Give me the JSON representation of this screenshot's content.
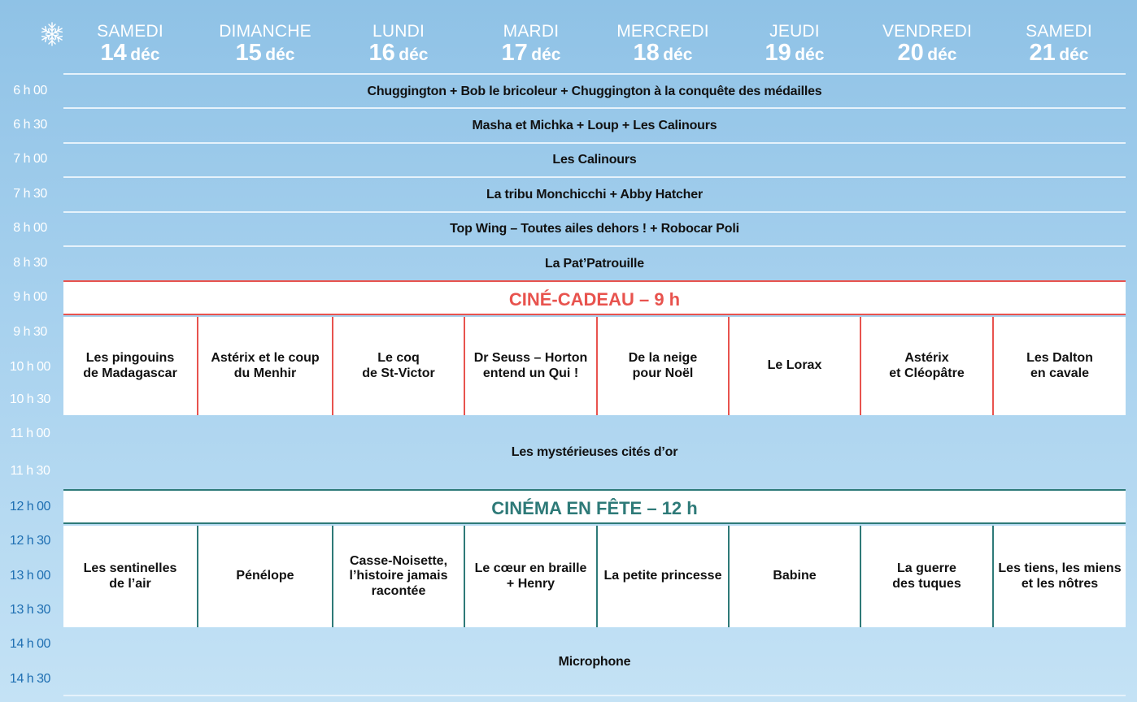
{
  "header": {
    "days": [
      {
        "name": "SAMEDI",
        "num": "14",
        "month": "déc"
      },
      {
        "name": "DIMANCHE",
        "num": "15",
        "month": "déc"
      },
      {
        "name": "LUNDI",
        "num": "16",
        "month": "déc"
      },
      {
        "name": "MARDI",
        "num": "17",
        "month": "déc"
      },
      {
        "name": "MERCREDI",
        "num": "18",
        "month": "déc"
      },
      {
        "name": "JEUDI",
        "num": "19",
        "month": "déc"
      },
      {
        "name": "VENDREDI",
        "num": "20",
        "month": "déc"
      },
      {
        "name": "SAMEDI",
        "num": "21",
        "month": "déc"
      }
    ]
  },
  "times": [
    "6 h 00",
    "6 h 30",
    "7 h 00",
    "7 h 30",
    "8 h 00",
    "8 h 30",
    "9 h 00",
    "9 h 30",
    "10 h 00",
    "10 h 30",
    "11 h 00",
    "11 h 30",
    "12 h 00",
    "12 h 30",
    "13 h 00",
    "13 h 30",
    "14 h 00",
    "14 h 30"
  ],
  "daily_programs": [
    "Chuggington + Bob le bricoleur + Chuggington à la conquête des médailles",
    "Masha et Michka + Loup + Les Calinours",
    "Les Calinours",
    "La tribu Monchicchi + Abby Hatcher",
    "Top Wing – Toutes ailes dehors ! + Robocar Poli",
    "La Pat’Patrouille"
  ],
  "cine_cadeau": {
    "title": "CINÉ-CADEAU – 9 h",
    "color": "#e8534e",
    "films": [
      [
        "Les pingouins",
        "de Madagascar"
      ],
      [
        "Astérix et le coup",
        "du Menhir"
      ],
      [
        "Le coq",
        "de St-Victor"
      ],
      [
        "Dr Seuss – Horton",
        "entend un Qui !"
      ],
      [
        "De la neige",
        "pour Noël"
      ],
      [
        "Le Lorax"
      ],
      [
        "Astérix",
        "et Cléopâtre"
      ],
      [
        "Les Dalton",
        "en cavale"
      ]
    ]
  },
  "midday_program": "Les mystérieuses cités d’or",
  "cinema_en_fete": {
    "title": "CINÉMA EN FÊTE – 12 h",
    "color": "#2e7a78",
    "films": [
      [
        "Les sentinelles",
        "de l’air"
      ],
      [
        "Pénélope"
      ],
      [
        "Casse-Noisette,",
        "l’histoire jamais",
        "racontée"
      ],
      [
        "Le cœur en braille",
        "+ Henry"
      ],
      [
        "La petite princesse"
      ],
      [
        "Babine"
      ],
      [
        "La guerre",
        "des tuques"
      ],
      [
        "Les tiens, les miens",
        "et les nôtres"
      ]
    ]
  },
  "afternoon_program": "Microphone",
  "colors": {
    "background_top": "#8fc2e6",
    "background_bottom": "#c4e2f5",
    "time_blue": "#1f6fb2"
  }
}
